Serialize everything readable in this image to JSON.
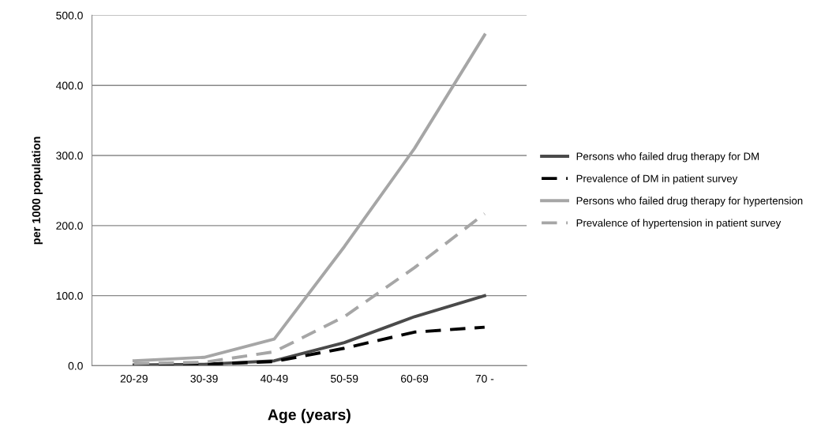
{
  "chart_data": {
    "type": "line",
    "xlabel": "Age (years)",
    "ylabel": "per 1000 population",
    "categories": [
      "20-29",
      "30-39",
      "40-49",
      "50-59",
      "60-69",
      "70 -"
    ],
    "ylim": [
      0,
      500
    ],
    "yticks": [
      {
        "value": 0,
        "label": "0.0"
      },
      {
        "value": 100,
        "label": "100.0"
      },
      {
        "value": 200,
        "label": "200.0"
      },
      {
        "value": 300,
        "label": "300.0"
      },
      {
        "value": 400,
        "label": "400.0"
      },
      {
        "value": 500,
        "label": "500.0"
      }
    ],
    "grid": "y",
    "legend": "right",
    "series": [
      {
        "name": "Persons who failed drug therapy for DM",
        "color": "#4a4a4a",
        "line_style": "solid",
        "values": [
          1,
          2,
          7,
          33,
          70,
          100
        ]
      },
      {
        "name": "Prevalence of DM in patient survey",
        "color": "#000000",
        "line_style": "dashed",
        "values": [
          1,
          2,
          6,
          25,
          48,
          55
        ]
      },
      {
        "name": "Persons who failed drug therapy for hypertension",
        "color": "#a6a6a6",
        "line_style": "solid",
        "values": [
          7,
          12,
          38,
          170,
          310,
          472
        ]
      },
      {
        "name": "Prevalence of hypertension in patient survey",
        "color": "#a6a6a6",
        "line_style": "dashed",
        "values": [
          3,
          5,
          20,
          70,
          140,
          217
        ]
      }
    ]
  }
}
